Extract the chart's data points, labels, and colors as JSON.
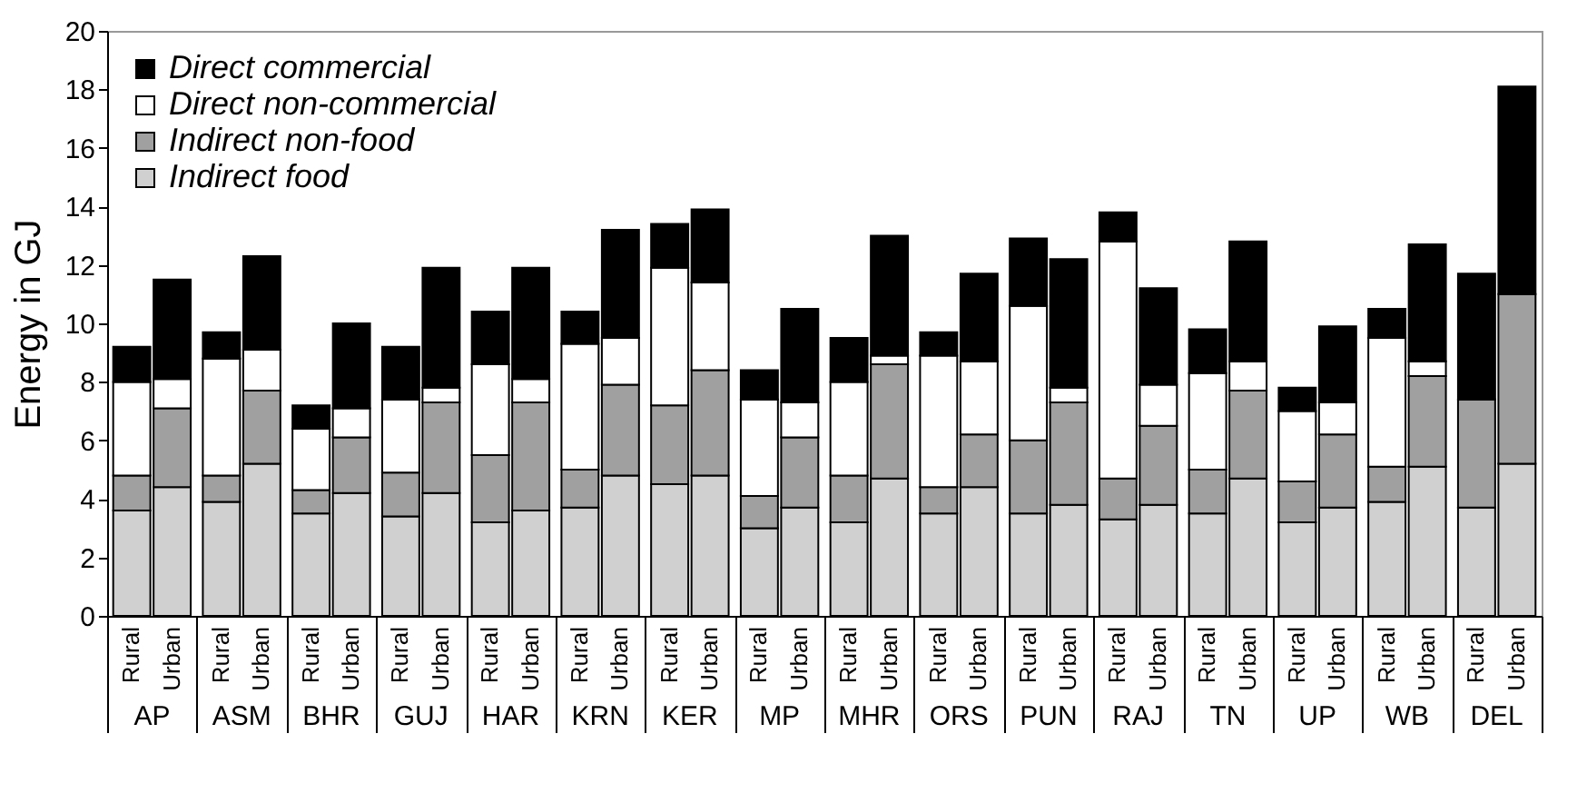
{
  "chart_data": {
    "type": "bar",
    "stacked": true,
    "ylabel": "Energy in GJ",
    "categories": [
      "Rural",
      "Urban",
      "Rural",
      "Urban",
      "Rural",
      "Urban",
      "Rural",
      "Urban",
      "Rural",
      "Urban",
      "Rural",
      "Urban",
      "Rural",
      "Urban",
      "Rural",
      "Urban",
      "Rural",
      "Urban",
      "Rural",
      "Urban",
      "Rural",
      "Urban",
      "Rural",
      "Urban",
      "Rural",
      "Urban",
      "Rural",
      "Urban",
      "Rural",
      "Urban",
      "Rural",
      "Urban"
    ],
    "annotations": [
      "AP",
      "ASM",
      "BHR",
      "GUJ",
      "HAR",
      "KRN",
      "KER",
      "MP",
      "MHR",
      "ORS",
      "PUN",
      "RAJ",
      "TN",
      "UP",
      "WB",
      "DEL"
    ],
    "series": [
      {
        "name": "Indirect food",
        "color": "#d0d0d0",
        "values": [
          3.6,
          4.4,
          3.9,
          5.2,
          3.5,
          4.2,
          3.4,
          4.2,
          3.2,
          3.6,
          3.7,
          4.8,
          4.5,
          4.8,
          3.0,
          3.7,
          3.2,
          4.7,
          3.5,
          4.4,
          3.5,
          3.8,
          3.3,
          3.8,
          3.5,
          4.7,
          3.2,
          3.7,
          3.9,
          5.1,
          3.7,
          5.2
        ]
      },
      {
        "name": "Indirect non-food",
        "color": "#a0a0a0",
        "values": [
          1.2,
          2.7,
          0.9,
          2.5,
          0.8,
          1.9,
          1.5,
          3.1,
          2.3,
          3.7,
          1.3,
          3.1,
          2.7,
          3.6,
          1.1,
          2.4,
          1.6,
          3.9,
          0.9,
          1.8,
          2.5,
          3.5,
          1.4,
          2.7,
          1.5,
          3.0,
          1.4,
          2.5,
          1.2,
          3.1,
          3.7,
          5.8
        ]
      },
      {
        "name": "Direct non-commercial",
        "color": "#ffffff",
        "values": [
          3.2,
          1.0,
          4.0,
          1.4,
          2.1,
          1.0,
          2.5,
          0.5,
          3.1,
          0.8,
          4.3,
          1.6,
          4.7,
          3.0,
          3.3,
          1.2,
          3.2,
          0.3,
          4.5,
          2.5,
          4.6,
          0.5,
          8.1,
          1.4,
          3.3,
          1.0,
          2.4,
          1.1,
          4.4,
          0.5,
          null,
          null
        ]
      },
      {
        "name": "Direct commercial",
        "color": "#000000",
        "values": [
          1.2,
          3.4,
          0.9,
          3.2,
          0.8,
          2.9,
          1.8,
          4.1,
          1.8,
          3.8,
          1.1,
          3.7,
          1.5,
          2.5,
          1.0,
          3.2,
          1.5,
          4.1,
          0.8,
          3.0,
          2.3,
          4.4,
          1.0,
          3.3,
          1.5,
          4.1,
          0.8,
          2.6,
          1.0,
          4.0,
          4.3,
          7.1
        ]
      }
    ],
    "ylim": [
      0,
      20
    ],
    "yticks": [
      0,
      2,
      4,
      6,
      8,
      10,
      12,
      14,
      16,
      18,
      20
    ],
    "legend": "top left",
    "marker": "square"
  }
}
